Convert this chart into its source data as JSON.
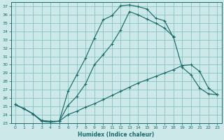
{
  "title": "",
  "xlabel": "Humidex (Indice chaleur)",
  "bg_color": "#cce8e8",
  "grid_color": "#7bbcbc",
  "line_color": "#1a6b6b",
  "xlim": [
    -0.5,
    23.5
  ],
  "ylim": [
    23,
    37.5
  ],
  "xticks": [
    0,
    1,
    2,
    3,
    4,
    5,
    6,
    7,
    8,
    9,
    10,
    11,
    12,
    13,
    14,
    15,
    16,
    17,
    18,
    19,
    20,
    21,
    22,
    23
  ],
  "yticks": [
    23,
    24,
    25,
    26,
    27,
    28,
    29,
    30,
    31,
    32,
    33,
    34,
    35,
    36,
    37
  ],
  "curve_upper_x": [
    0,
    1,
    2,
    3,
    4,
    5,
    6,
    7,
    8,
    9,
    10,
    11,
    12,
    13,
    14,
    15,
    16,
    17,
    18
  ],
  "curve_upper_y": [
    25.2,
    24.7,
    24.1,
    23.2,
    23.1,
    23.2,
    26.8,
    28.8,
    30.8,
    33.2,
    35.4,
    35.9,
    37.1,
    37.2,
    37.0,
    36.7,
    35.6,
    35.3,
    33.3
  ],
  "curve_mid_x": [
    0,
    1,
    2,
    3,
    4,
    5,
    6,
    7,
    8,
    9,
    10,
    11,
    12,
    13,
    14,
    15,
    16,
    17,
    18,
    19,
    20,
    21,
    22,
    23
  ],
  "curve_mid_y": [
    25.2,
    24.7,
    24.1,
    23.2,
    23.1,
    23.2,
    25.1,
    26.2,
    27.7,
    30.0,
    31.2,
    32.5,
    34.2,
    36.4,
    36.0,
    35.5,
    35.0,
    34.4,
    33.4,
    29.7,
    28.8,
    27.2,
    26.5,
    26.4
  ],
  "curve_lower_x": [
    0,
    1,
    2,
    3,
    4,
    5,
    6,
    7,
    8,
    9,
    10,
    11,
    12,
    13,
    14,
    15,
    16,
    17,
    18,
    19,
    20,
    21,
    22,
    23
  ],
  "curve_lower_y": [
    25.2,
    24.7,
    24.1,
    23.3,
    23.2,
    23.2,
    24.0,
    24.4,
    24.9,
    25.3,
    25.8,
    26.3,
    26.8,
    27.3,
    27.8,
    28.2,
    28.6,
    29.0,
    29.4,
    29.9,
    30.0,
    29.2,
    27.2,
    26.4
  ]
}
